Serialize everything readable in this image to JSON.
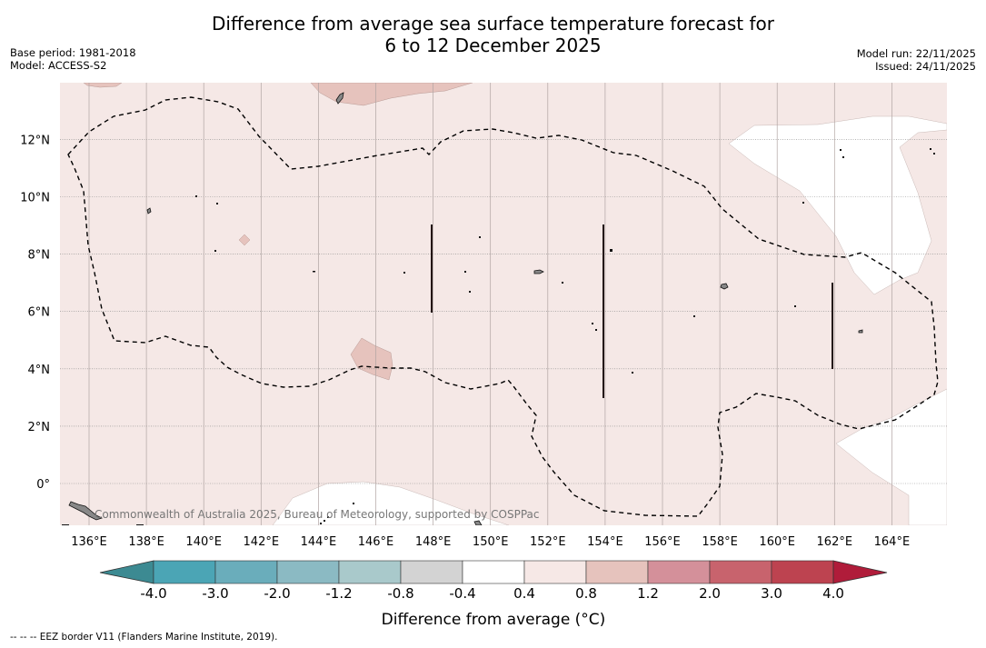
{
  "title": {
    "line1": "Difference from average sea surface temperature forecast for",
    "line2": "6 to 12 December 2025"
  },
  "meta_left": {
    "base_period": "Base period: 1981-2018",
    "model": "Model: ACCESS-S2"
  },
  "meta_right": {
    "model_run": "Model run: 22/11/2025",
    "issued": "Issued: 24/11/2025"
  },
  "map": {
    "lon_range": [
      135,
      166
    ],
    "lat_range": [
      -1.5,
      14
    ],
    "lat_labels": [
      "12°N",
      "10°N",
      "8°N",
      "6°N",
      "4°N",
      "2°N",
      "0°"
    ],
    "lon_labels": [
      "136°E",
      "138°E",
      "140°E",
      "142°E",
      "144°E",
      "146°E",
      "148°E",
      "150°E",
      "152°E",
      "154°E",
      "156°E",
      "158°E",
      "160°E",
      "162°E",
      "164°E"
    ],
    "background_color": "#f5e8e6",
    "light_color": "#ffffff",
    "warmer_color": "#e6c3bd",
    "attribution": "Commonwealth of Australia 2025, Bureau of Meteorology, supported by COSPPac"
  },
  "colorbar": {
    "tick_labels": [
      "-4.0",
      "-3.0",
      "-2.0",
      "-1.2",
      "-0.8",
      "-0.4",
      "0.4",
      "0.8",
      "1.2",
      "2.0",
      "3.0",
      "4.0"
    ],
    "colors": [
      "#4ba5b5",
      "#6aadbb",
      "#8bbac3",
      "#a9c9cb",
      "#d3d3d3",
      "#ffffff",
      "#f6e8e6",
      "#e6c3bd",
      "#d4909a",
      "#c8636d",
      "#bd4350"
    ],
    "under_color": "#3c8a92",
    "over_color": "#b01c3a",
    "label": "Difference from average (°C)"
  },
  "footnote": "-- -- -- EEZ border V11 (Flanders Marine Institute, 2019)."
}
